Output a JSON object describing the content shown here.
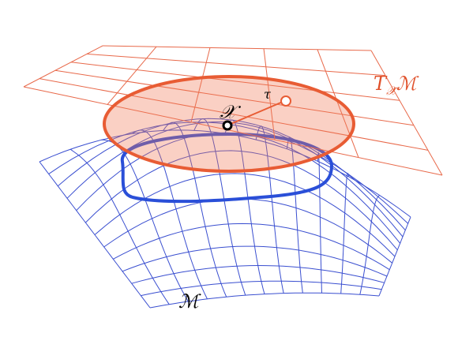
{
  "labels": {
    "point": "𝒳",
    "radius": "τ",
    "manifold": "ℳ",
    "tangent_space": {
      "base": "T",
      "subscript": "𝒳̄",
      "manifold": "ℳ"
    }
  }
}
